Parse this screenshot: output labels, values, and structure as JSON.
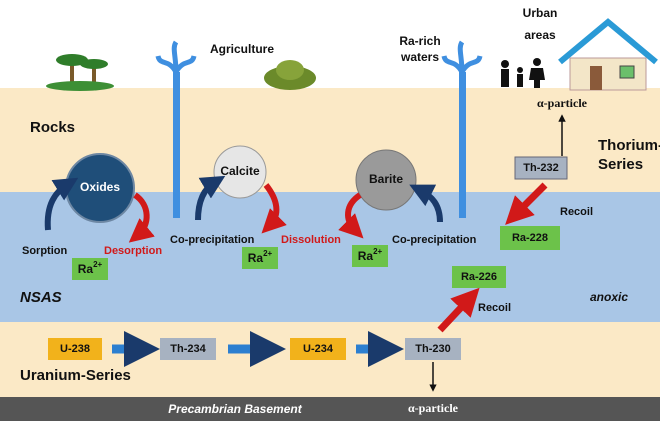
{
  "top": {
    "agriculture": "Agriculture",
    "ra_rich_waters": [
      "Ra-rich",
      "waters"
    ],
    "urban_areas": [
      "Urban",
      "areas"
    ]
  },
  "rocks": {
    "label": "Rocks",
    "thorium_series": [
      "Thorium-",
      "Series"
    ],
    "alpha": "α-particle",
    "th232": "Th-232",
    "recoil": "Recoil",
    "ra228": "Ra-228"
  },
  "minerals": [
    "Oxides",
    "Calcite",
    "Barite"
  ],
  "processes": {
    "sorption": "Sorption",
    "desorption": "Desorption",
    "coprecipitation_1": "Co-precipitation",
    "dissolution": "Dissolution",
    "coprecipitation_2": "Co-precipitation"
  },
  "radium_ions": [
    {
      "base": "Ra",
      "sup": "2+"
    },
    {
      "base": "Ra",
      "sup": "2+"
    },
    {
      "base": "Ra",
      "sup": "2+"
    }
  ],
  "aquifer": {
    "label": "NSAS",
    "condition": "anoxic",
    "ra226": "Ra-226",
    "recoil": "Recoil"
  },
  "uranium_series": {
    "label": "Uranium-Series",
    "chain": [
      "U-238",
      "Th-234",
      "U-234",
      "Th-230"
    ],
    "alpha": "α-particle"
  },
  "basement": "Precambrian Basement"
}
